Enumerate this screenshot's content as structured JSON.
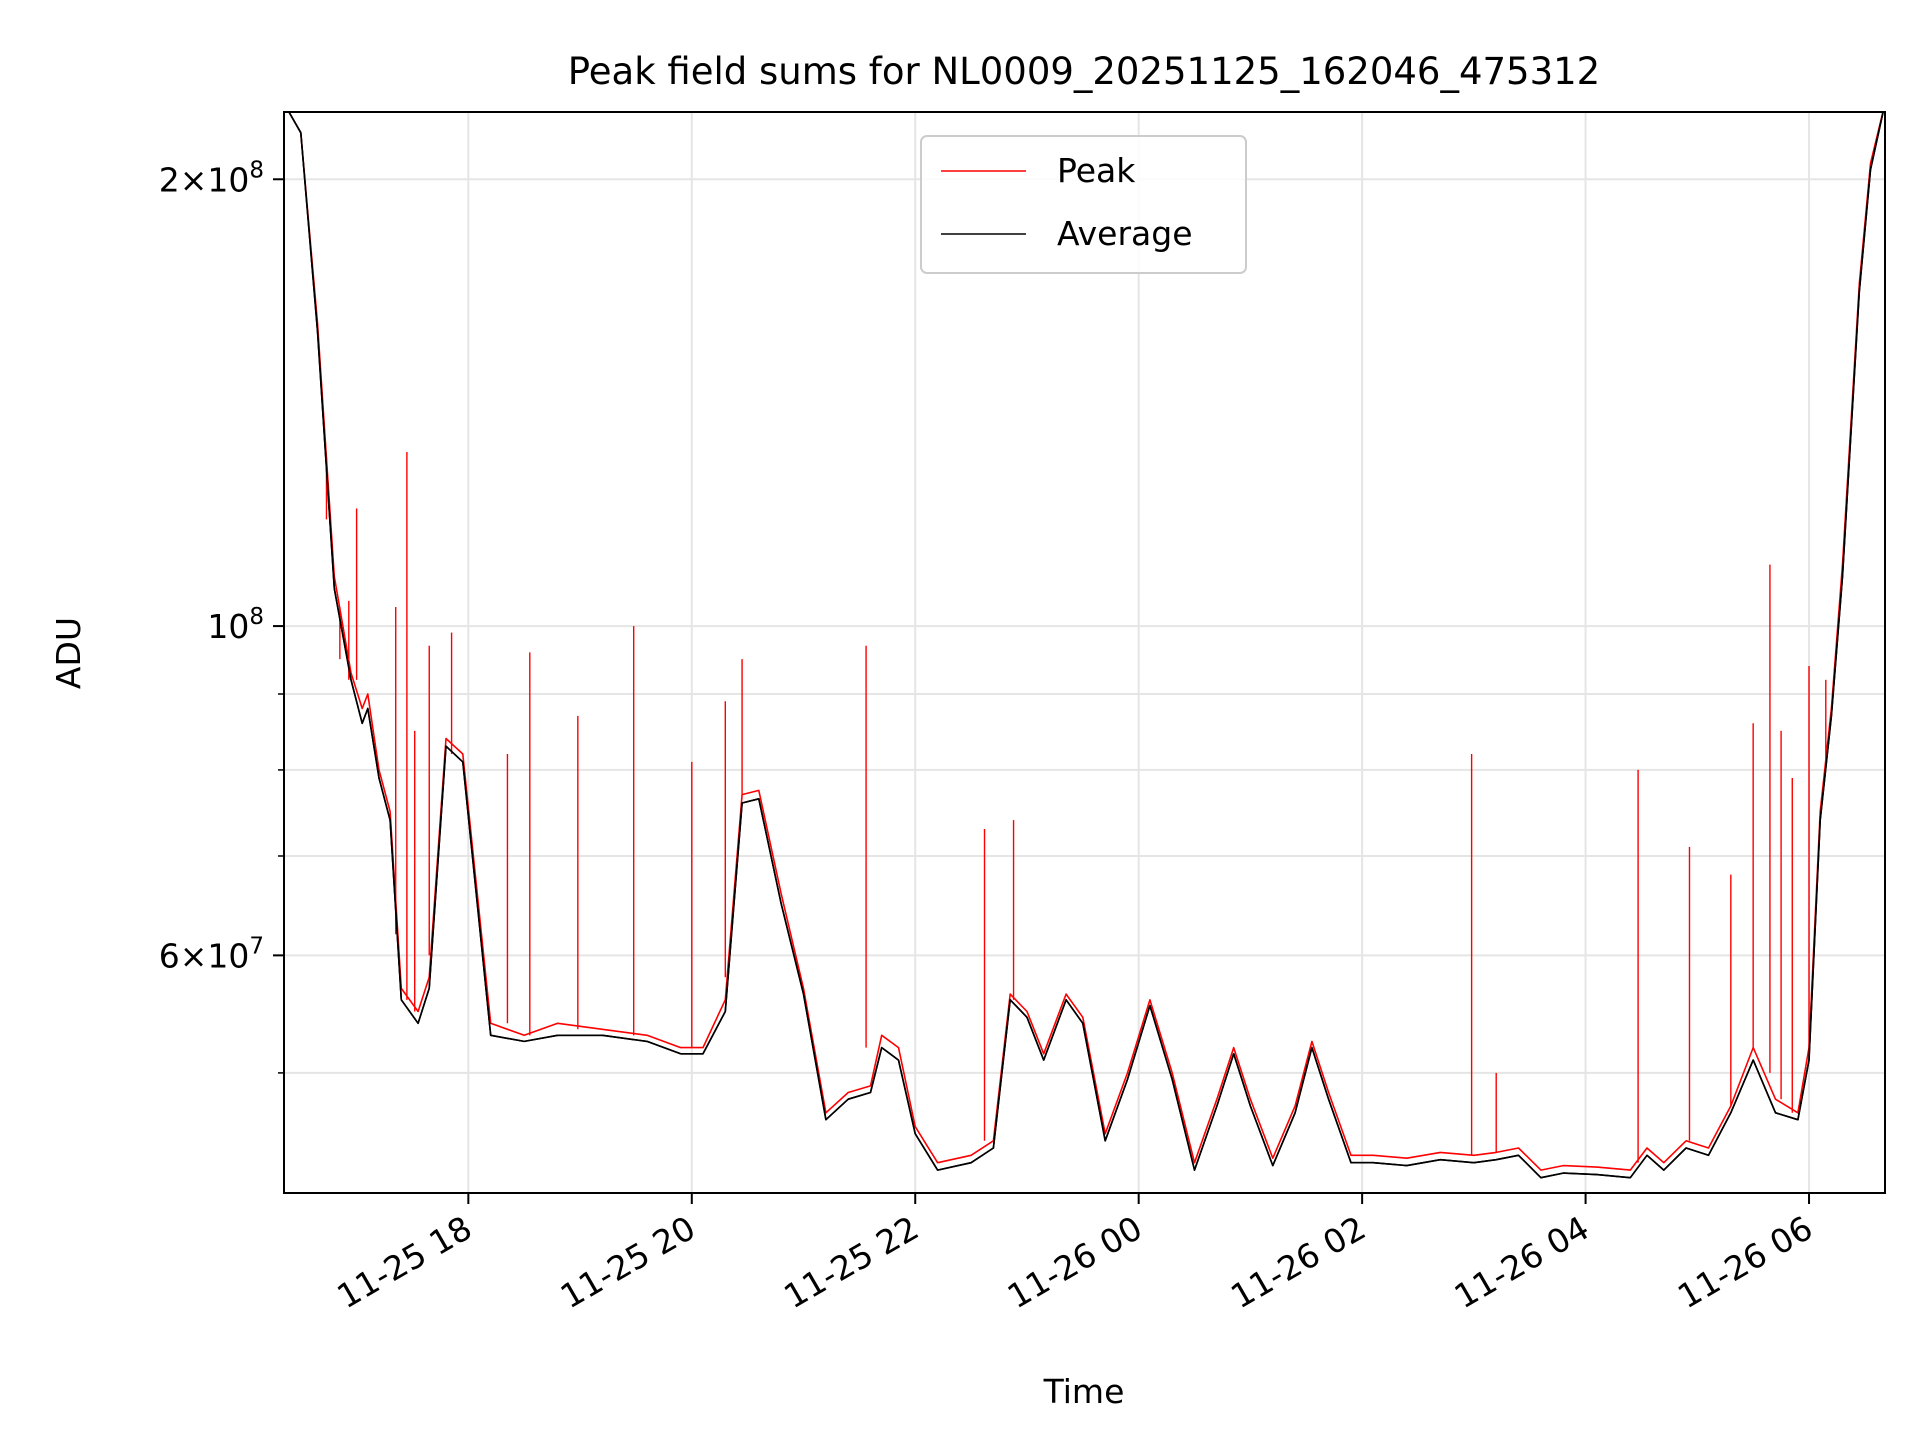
{
  "chart_data": {
    "type": "line",
    "title": "Peak field sums for NL0009_20251125_162046_475312",
    "xlabel": "Time",
    "ylabel": "ADU",
    "yscale": "log",
    "grid": true,
    "legend_position": "upper center",
    "xlim": [
      16.35,
      30.68
    ],
    "ylim": [
      41500000,
      222000000
    ],
    "x_ticks": [
      {
        "value": 18,
        "label": "11-25 18"
      },
      {
        "value": 20,
        "label": "11-25 20"
      },
      {
        "value": 22,
        "label": "11-25 22"
      },
      {
        "value": 24,
        "label": "11-26 00"
      },
      {
        "value": 26,
        "label": "11-26 02"
      },
      {
        "value": 28,
        "label": "11-26 04"
      },
      {
        "value": 30,
        "label": "11-26 06"
      }
    ],
    "y_major_ticks": [
      {
        "value": 60000000,
        "base": "6",
        "exp": "7"
      },
      {
        "value": 100000000,
        "base": "",
        "exp": "8"
      },
      {
        "value": 200000000,
        "base": "2",
        "exp": "8"
      }
    ],
    "y_minor_ticks": [
      50000000,
      70000000,
      80000000,
      90000000
    ],
    "x_units": "hours since 11-25 00:00",
    "series": [
      {
        "name": "Peak",
        "color": "#ff0000",
        "x": [
          16.35,
          16.5,
          16.65,
          16.8,
          16.95,
          17.05,
          17.1,
          17.2,
          17.3,
          17.4,
          17.55,
          17.65,
          17.8,
          17.95,
          18.2,
          18.5,
          18.8,
          19.2,
          19.6,
          19.9,
          20.1,
          20.3,
          20.45,
          20.6,
          20.8,
          21.0,
          21.2,
          21.4,
          21.6,
          21.7,
          21.85,
          22.0,
          22.2,
          22.5,
          22.7,
          22.85,
          23.0,
          23.15,
          23.35,
          23.5,
          23.7,
          23.9,
          24.1,
          24.3,
          24.5,
          24.7,
          24.85,
          25.0,
          25.2,
          25.4,
          25.55,
          25.7,
          25.9,
          26.1,
          26.4,
          26.7,
          27.0,
          27.2,
          27.4,
          27.6,
          27.8,
          28.1,
          28.4,
          28.55,
          28.7,
          28.9,
          29.1,
          29.3,
          29.5,
          29.7,
          29.9,
          30.0,
          30.1,
          30.2,
          30.3,
          30.45,
          30.55,
          30.68
        ],
        "y": [
          225000000,
          215000000,
          160000000,
          108000000,
          93000000,
          88000000,
          90000000,
          80000000,
          75000000,
          57000000,
          55000000,
          58000000,
          84000000,
          82000000,
          54000000,
          53000000,
          54000000,
          53500000,
          53000000,
          52000000,
          52000000,
          56000000,
          77000000,
          77500000,
          66000000,
          57000000,
          47000000,
          48500000,
          49000000,
          53000000,
          52000000,
          46000000,
          43500000,
          44000000,
          45000000,
          56500000,
          55000000,
          51500000,
          56500000,
          54500000,
          45500000,
          50000000,
          56000000,
          50000000,
          43500000,
          48000000,
          52000000,
          48000000,
          43800000,
          47500000,
          52500000,
          48500000,
          44000000,
          44000000,
          43800000,
          44200000,
          44000000,
          44200000,
          44500000,
          43000000,
          43300000,
          43200000,
          43000000,
          44500000,
          43500000,
          45000000,
          44500000,
          47500000,
          52000000,
          48000000,
          47000000,
          52000000,
          75000000,
          88000000,
          110000000,
          170000000,
          205000000,
          225000000
        ]
      },
      {
        "name": "Average",
        "color": "#000000",
        "x": [
          16.35,
          16.5,
          16.65,
          16.8,
          16.95,
          17.05,
          17.1,
          17.2,
          17.3,
          17.4,
          17.55,
          17.65,
          17.8,
          17.95,
          18.2,
          18.5,
          18.8,
          19.2,
          19.6,
          19.9,
          20.1,
          20.3,
          20.45,
          20.6,
          20.8,
          21.0,
          21.2,
          21.4,
          21.6,
          21.7,
          21.85,
          22.0,
          22.2,
          22.5,
          22.7,
          22.85,
          23.0,
          23.15,
          23.35,
          23.5,
          23.7,
          23.9,
          24.1,
          24.3,
          24.5,
          24.7,
          24.85,
          25.0,
          25.2,
          25.4,
          25.55,
          25.7,
          25.9,
          26.1,
          26.4,
          26.7,
          27.0,
          27.2,
          27.4,
          27.6,
          27.8,
          28.1,
          28.4,
          28.55,
          28.7,
          28.9,
          29.1,
          29.3,
          29.5,
          29.7,
          29.9,
          30.0,
          30.1,
          30.2,
          30.3,
          30.45,
          30.55,
          30.68
        ],
        "y": [
          225000000,
          215000000,
          158000000,
          106000000,
          92000000,
          86000000,
          88000000,
          79000000,
          74000000,
          56000000,
          54000000,
          57000000,
          83000000,
          81000000,
          53000000,
          52500000,
          53000000,
          53000000,
          52500000,
          51500000,
          51500000,
          55000000,
          76000000,
          76500000,
          65000000,
          56500000,
          46500000,
          48000000,
          48500000,
          52000000,
          51000000,
          45500000,
          43000000,
          43500000,
          44500000,
          56000000,
          54500000,
          51000000,
          56000000,
          54000000,
          45000000,
          49500000,
          55500000,
          49500000,
          43000000,
          47500000,
          51500000,
          47500000,
          43300000,
          47000000,
          52000000,
          48000000,
          43500000,
          43500000,
          43300000,
          43700000,
          43500000,
          43700000,
          44000000,
          42500000,
          42800000,
          42700000,
          42500000,
          44000000,
          43000000,
          44500000,
          44000000,
          47000000,
          51000000,
          47000000,
          46500000,
          51000000,
          74000000,
          87000000,
          108000000,
          168000000,
          203000000,
          225000000
        ]
      }
    ],
    "spikes": [
      {
        "x": 16.73,
        "peak": 130000000,
        "base": 118000000
      },
      {
        "x": 16.85,
        "peak": 103000000,
        "base": 95000000
      },
      {
        "x": 16.93,
        "peak": 104000000,
        "base": 92000000
      },
      {
        "x": 17.0,
        "peak": 120000000,
        "base": 92000000
      },
      {
        "x": 17.35,
        "peak": 103000000,
        "base": 62000000
      },
      {
        "x": 17.45,
        "peak": 131000000,
        "base": 56000000
      },
      {
        "x": 17.52,
        "peak": 85000000,
        "base": 55000000
      },
      {
        "x": 17.65,
        "peak": 97000000,
        "base": 60000000
      },
      {
        "x": 17.85,
        "peak": 99000000,
        "base": 82000000
      },
      {
        "x": 18.35,
        "peak": 82000000,
        "base": 54000000
      },
      {
        "x": 18.55,
        "peak": 96000000,
        "base": 53000000
      },
      {
        "x": 18.98,
        "peak": 87000000,
        "base": 53500000
      },
      {
        "x": 19.48,
        "peak": 100000000,
        "base": 53000000
      },
      {
        "x": 20.0,
        "peak": 81000000,
        "base": 52000000
      },
      {
        "x": 20.3,
        "peak": 89000000,
        "base": 58000000
      },
      {
        "x": 20.45,
        "peak": 95000000,
        "base": 77000000
      },
      {
        "x": 21.56,
        "peak": 97000000,
        "base": 52000000
      },
      {
        "x": 22.62,
        "peak": 73000000,
        "base": 45000000
      },
      {
        "x": 22.88,
        "peak": 74000000,
        "base": 56000000
      },
      {
        "x": 26.98,
        "peak": 82000000,
        "base": 44000000
      },
      {
        "x": 27.2,
        "peak": 50000000,
        "base": 44200000
      },
      {
        "x": 28.47,
        "peak": 80000000,
        "base": 43500000
      },
      {
        "x": 28.93,
        "peak": 71000000,
        "base": 45000000
      },
      {
        "x": 29.3,
        "peak": 68000000,
        "base": 47500000
      },
      {
        "x": 29.5,
        "peak": 86000000,
        "base": 52000000
      },
      {
        "x": 29.65,
        "peak": 110000000,
        "base": 50000000
      },
      {
        "x": 29.75,
        "peak": 85000000,
        "base": 48000000
      },
      {
        "x": 29.85,
        "peak": 79000000,
        "base": 47000000
      },
      {
        "x": 30.0,
        "peak": 94000000,
        "base": 52000000
      },
      {
        "x": 30.15,
        "peak": 92000000,
        "base": 80000000
      }
    ]
  }
}
